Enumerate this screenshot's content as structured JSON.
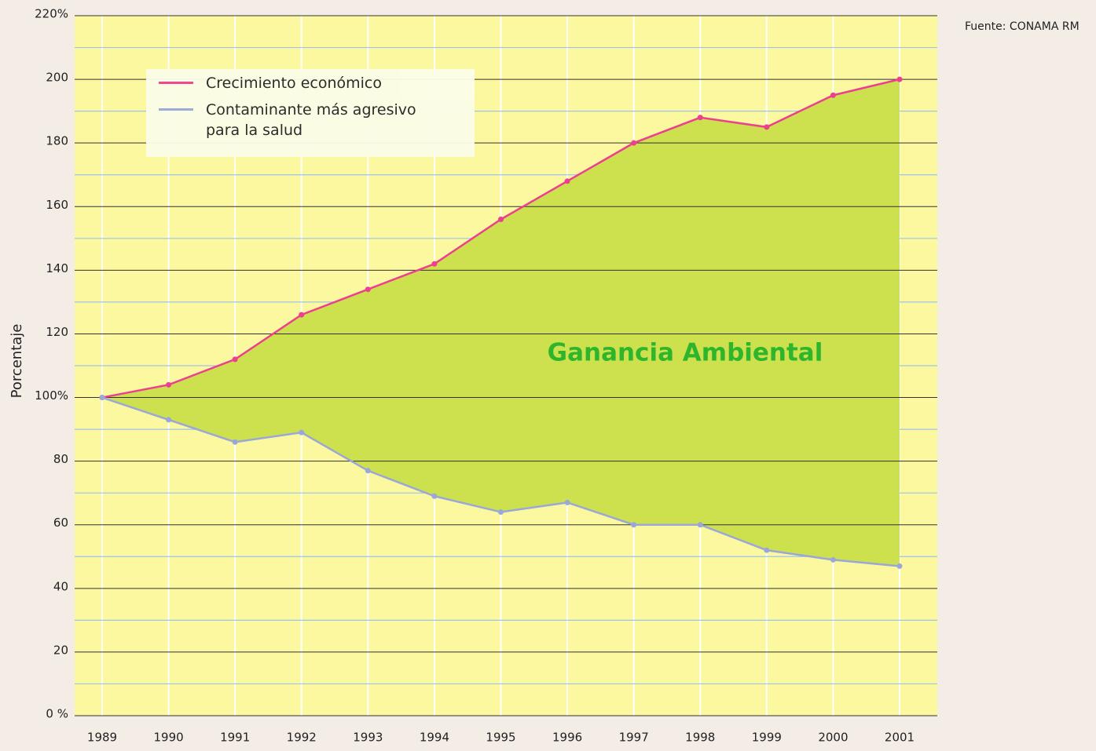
{
  "chart_data": {
    "type": "line",
    "title_note": null,
    "source": "Fuente: CONAMA RM",
    "ylabel": "Porcentaje",
    "annotation": "Ganancia Ambiental",
    "categories": [
      "1989",
      "1990",
      "1991",
      "1992",
      "1993",
      "1994",
      "1995",
      "1996",
      "1997",
      "1998",
      "1999",
      "2000",
      "2001"
    ],
    "series": [
      {
        "name": "Crecimiento económico",
        "color": "#ee3f8f",
        "values": [
          100,
          104,
          112,
          126,
          134,
          142,
          156,
          168,
          180,
          188,
          185,
          195,
          200
        ]
      },
      {
        "name": "Contaminante más agresivo\npara la salud",
        "color": "#9aa7d8",
        "values": [
          100,
          93,
          86,
          89,
          77,
          69,
          64,
          67,
          60,
          60,
          52,
          49,
          47
        ]
      }
    ],
    "fill_between": "#cde14f",
    "ylim": [
      0,
      220
    ],
    "yticks": [
      {
        "value": 0,
        "label": "0 %"
      },
      20,
      40,
      60,
      80,
      {
        "value": 100,
        "label": "100%"
      },
      120,
      140,
      160,
      180,
      200,
      {
        "value": 220,
        "label": "220%"
      }
    ],
    "grid": true
  }
}
